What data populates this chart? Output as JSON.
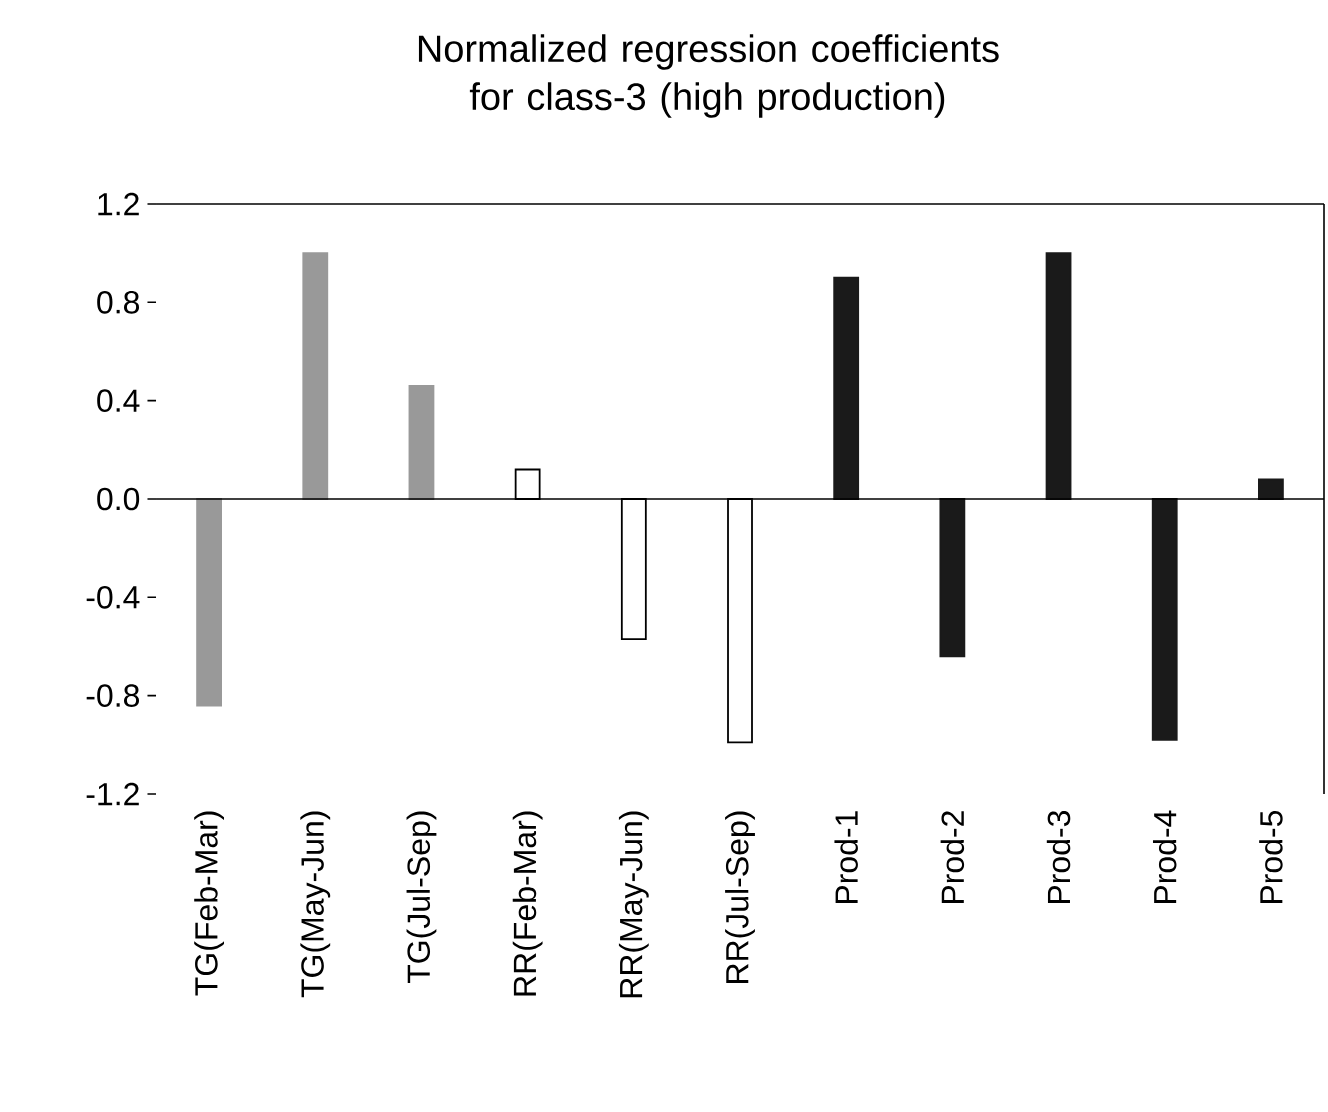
{
  "chart_data": {
    "type": "bar",
    "title": "Normalized regression coefficients for class-3 (high production)",
    "categories": [
      "TG(Feb-Mar)",
      "TG(May-Jun)",
      "TG(Jul-Sep)",
      "RR(Feb-Mar)",
      "RR(May-Jun)",
      "RR(Jul-Sep)",
      "Prod-1",
      "Prod-2",
      "Prod-3",
      "Prod-4",
      "Prod-5"
    ],
    "values": [
      -0.84,
      1.0,
      0.46,
      0.12,
      -0.57,
      -0.99,
      0.9,
      -0.64,
      1.0,
      -0.98,
      0.08
    ],
    "colors": [
      "#999999",
      "#999999",
      "#999999",
      "#ffffff",
      "#ffffff",
      "#ffffff",
      "#1a1a1a",
      "#1a1a1a",
      "#1a1a1a",
      "#1a1a1a",
      "#1a1a1a"
    ],
    "ylim": [
      -1.2,
      1.2
    ],
    "yticks": [
      {
        "value": -1.2,
        "label": "-1.2"
      },
      {
        "value": -0.8,
        "label": "-0.8"
      },
      {
        "value": -0.4,
        "label": "-0.4"
      },
      {
        "value": 0.0,
        "label": "0.0"
      },
      {
        "value": 0.4,
        "label": "0.4"
      },
      {
        "value": 0.8,
        "label": "0.8"
      },
      {
        "value": 1.2,
        "label": "1.2"
      }
    ],
    "relative": false
  }
}
